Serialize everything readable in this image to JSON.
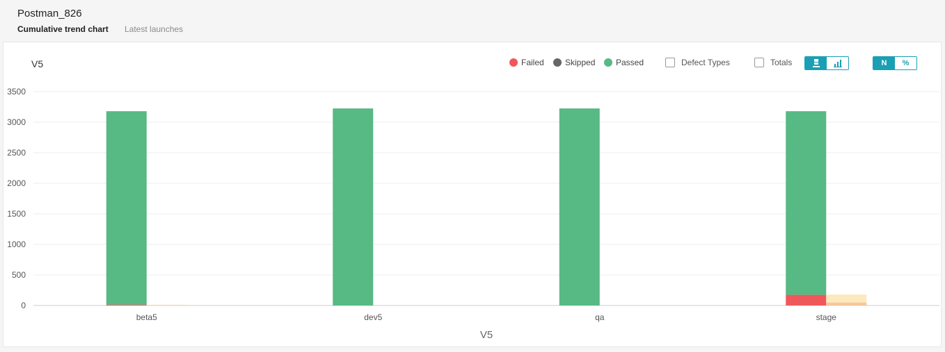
{
  "header": {
    "title": "Postman_826",
    "tabs": [
      {
        "label": "Cumulative trend chart",
        "active": true
      },
      {
        "label": "Latest launches",
        "active": false
      }
    ]
  },
  "toolbar": {
    "legend": [
      {
        "label": "Failed",
        "color": "#f0575b"
      },
      {
        "label": "Skipped",
        "color": "#666666"
      },
      {
        "label": "Passed",
        "color": "#57b984"
      }
    ],
    "checkboxes": [
      {
        "label": "Defect Types",
        "checked": false
      },
      {
        "label": "Totals",
        "checked": false
      }
    ],
    "view_toggle": {
      "options": [
        "bars-icon",
        "column-chart-icon"
      ],
      "selected": 0
    },
    "mode_toggle": {
      "options": [
        "N",
        "%"
      ],
      "selected": 0
    }
  },
  "chart_data": {
    "type": "bar",
    "title": "V5",
    "xlabel": "V5",
    "ylabel": "",
    "ylim": [
      0,
      3500
    ],
    "yticks": [
      0,
      500,
      1000,
      1500,
      2000,
      2500,
      3000,
      3500
    ],
    "grid": true,
    "categories": [
      "beta5",
      "dev5",
      "qa",
      "stage"
    ],
    "series": [
      {
        "name": "Failed",
        "stack": "status",
        "color": "#f0575b",
        "values": [
          15,
          0,
          0,
          175
        ]
      },
      {
        "name": "Skipped",
        "stack": "status",
        "color": "#666666",
        "values": [
          0,
          0,
          0,
          0
        ]
      },
      {
        "name": "Passed",
        "stack": "status",
        "color": "#57b984",
        "values": [
          3165,
          3225,
          3225,
          3005
        ]
      },
      {
        "stack": "defects",
        "color": "#f5c89a",
        "values": [
          5,
          0,
          0,
          50
        ]
      },
      {
        "stack": "defects",
        "color": "#fde9bd",
        "values": [
          5,
          0,
          0,
          130
        ]
      }
    ]
  }
}
